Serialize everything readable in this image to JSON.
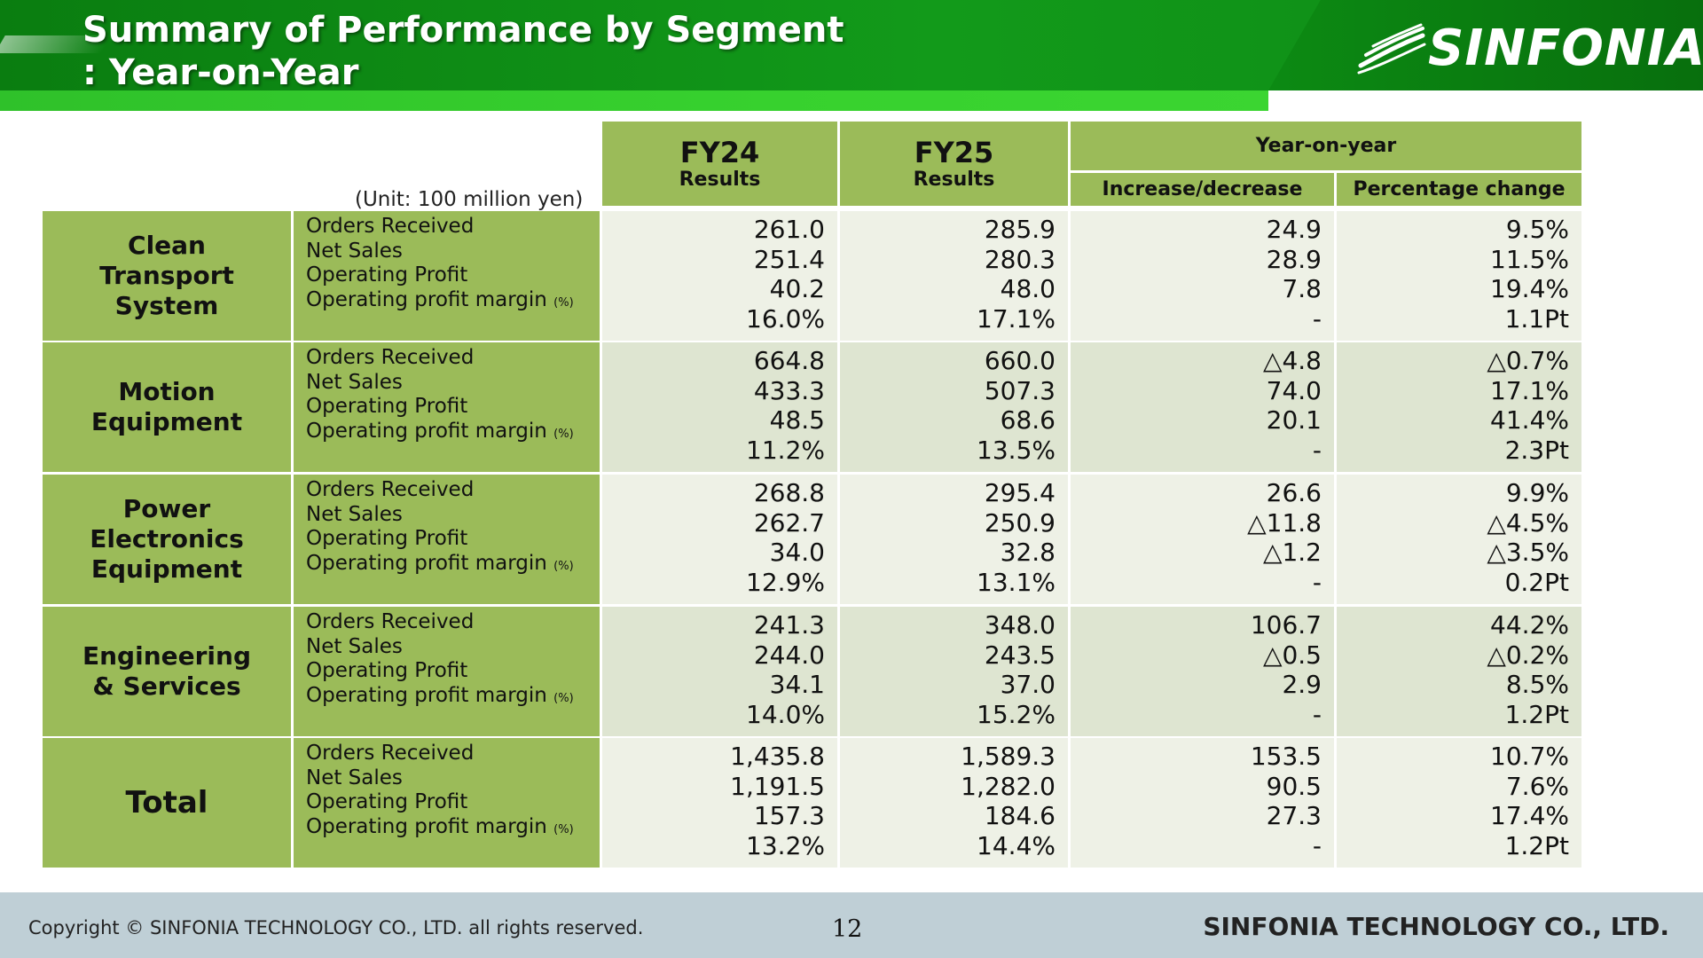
{
  "header": {
    "title_line1": "Summary of Performance by Segment",
    "title_line2": ": Year-on-Year",
    "logo_text": "SINFONIA",
    "colors": {
      "dark_green": "#0a7d10",
      "light_green": "#37d12e",
      "table_green": "#9bbb59"
    }
  },
  "table": {
    "unit": "(Unit: 100 million yen)",
    "columns": {
      "fy24": {
        "label": "FY24",
        "sub": "Results"
      },
      "fy25": {
        "label": "FY25",
        "sub": "Results"
      },
      "yoy": {
        "label": "Year-on-year",
        "increase": "Increase/decrease",
        "percentage": "Percentage change"
      }
    },
    "metric_labels": [
      "Orders Received",
      "Net Sales",
      "Operating Profit",
      "Operating profit margin"
    ],
    "percent_note": "(%)",
    "segments": [
      {
        "name_lines": [
          "Clean",
          "Transport",
          "System"
        ],
        "fy24": [
          "261.0",
          "251.4",
          "40.2",
          "16.0%"
        ],
        "fy25": [
          "285.9",
          "280.3",
          "48.0",
          "17.1%"
        ],
        "change": [
          "24.9",
          "28.9",
          "7.8",
          "-"
        ],
        "pct": [
          "9.5%",
          "11.5%",
          "19.4%",
          "1.1Pt"
        ]
      },
      {
        "name_lines": [
          "Motion",
          "Equipment"
        ],
        "fy24": [
          "664.8",
          "433.3",
          "48.5",
          "11.2%"
        ],
        "fy25": [
          "660.0",
          "507.3",
          "68.6",
          "13.5%"
        ],
        "change": [
          "△4.8",
          "74.0",
          "20.1",
          "-"
        ],
        "pct": [
          "△0.7%",
          "17.1%",
          "41.4%",
          "2.3Pt"
        ]
      },
      {
        "name_lines": [
          "Power",
          "Electronics",
          "Equipment"
        ],
        "fy24": [
          "268.8",
          "262.7",
          "34.0",
          "12.9%"
        ],
        "fy25": [
          "295.4",
          "250.9",
          "32.8",
          "13.1%"
        ],
        "change": [
          "26.6",
          "△11.8",
          "△1.2",
          "-"
        ],
        "pct": [
          "9.9%",
          "△4.5%",
          "△3.5%",
          "0.2Pt"
        ]
      },
      {
        "name_lines": [
          "Engineering",
          "& Services"
        ],
        "fy24": [
          "241.3",
          "244.0",
          "34.1",
          "14.0%"
        ],
        "fy25": [
          "348.0",
          "243.5",
          "37.0",
          "15.2%"
        ],
        "change": [
          "106.7",
          "△0.5",
          "2.9",
          "-"
        ],
        "pct": [
          "44.2%",
          "△0.2%",
          "8.5%",
          "1.2Pt"
        ]
      },
      {
        "name_lines": [
          "Total"
        ],
        "fy24": [
          "1,435.8",
          "1,191.5",
          "157.3",
          "13.2%"
        ],
        "fy25": [
          "1,589.3",
          "1,282.0",
          "184.6",
          "14.4%"
        ],
        "change": [
          "153.5",
          "90.5",
          "27.3",
          "-"
        ],
        "pct": [
          "10.7%",
          "7.6%",
          "17.4%",
          "1.2Pt"
        ]
      }
    ]
  },
  "footer": {
    "copyright": "Copyright © SINFONIA TECHNOLOGY CO., LTD. all rights reserved.",
    "page_number": "12",
    "company": "SINFONIA TECHNOLOGY CO., LTD."
  }
}
